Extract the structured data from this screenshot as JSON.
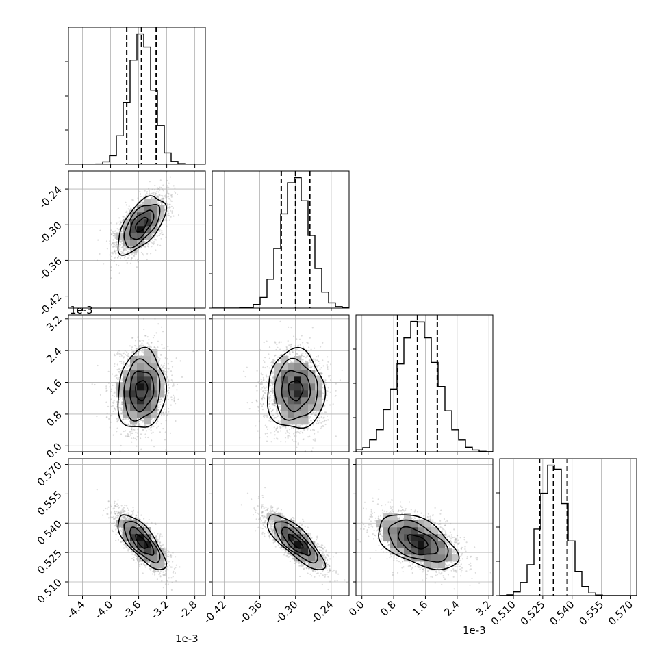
{
  "chart_data": {
    "type": "corner",
    "parameters": [
      {
        "index": 0,
        "range": [
          -4.6,
          -2.65
        ],
        "ticks": [
          "-4.4",
          "-4.0",
          "-3.6",
          "-3.2",
          "-2.8"
        ],
        "tick_values": [
          -4.4,
          -4.0,
          -3.6,
          -3.2,
          -2.8
        ],
        "offset_text": "1e-3",
        "mean": -3.56,
        "sd": 0.17,
        "quantiles": [
          -3.77,
          -3.56,
          -3.35
        ]
      },
      {
        "index": 1,
        "range": [
          -0.44,
          -0.21
        ],
        "ticks": [
          "-0.42",
          "-0.36",
          "-0.30",
          "-0.24"
        ],
        "tick_values": [
          -0.42,
          -0.36,
          -0.3,
          -0.24
        ],
        "offset_text": "",
        "mean": -0.3,
        "sd": 0.024,
        "quantiles": [
          -0.324,
          -0.3,
          -0.276
        ]
      },
      {
        "index": 2,
        "range": [
          -0.15,
          3.3
        ],
        "ticks": [
          "0.0",
          "0.8",
          "1.6",
          "2.4",
          "3.2"
        ],
        "tick_values": [
          0.0,
          0.8,
          1.6,
          2.4,
          3.2
        ],
        "offset_text": "1e-3",
        "mean": 1.4,
        "sd": 0.5,
        "quantiles": [
          0.9,
          1.4,
          1.9
        ]
      },
      {
        "index": 3,
        "range": [
          0.503,
          0.573
        ],
        "ticks": [
          "0.510",
          "0.525",
          "0.540",
          "0.555",
          "0.570"
        ],
        "tick_values": [
          0.51,
          0.525,
          0.54,
          0.555,
          0.57
        ],
        "offset_text": "",
        "mean": 0.5305,
        "sd": 0.007,
        "quantiles": [
          0.5234,
          0.5305,
          0.5375
        ]
      }
    ],
    "correlations": [
      {
        "pair": [
          0,
          1
        ],
        "rho": 0.6
      },
      {
        "pair": [
          0,
          2
        ],
        "rho": 0.1
      },
      {
        "pair": [
          1,
          2
        ],
        "rho": 0.0
      },
      {
        "pair": [
          0,
          3
        ],
        "rho": -0.75
      },
      {
        "pair": [
          1,
          3
        ],
        "rho": -0.8
      },
      {
        "pair": [
          2,
          3
        ],
        "rho": -0.5
      }
    ],
    "contour_levels_sigma": [
      0.5,
      1.0,
      1.5,
      2.0
    ],
    "histogram_bins": 20,
    "grid": true
  }
}
